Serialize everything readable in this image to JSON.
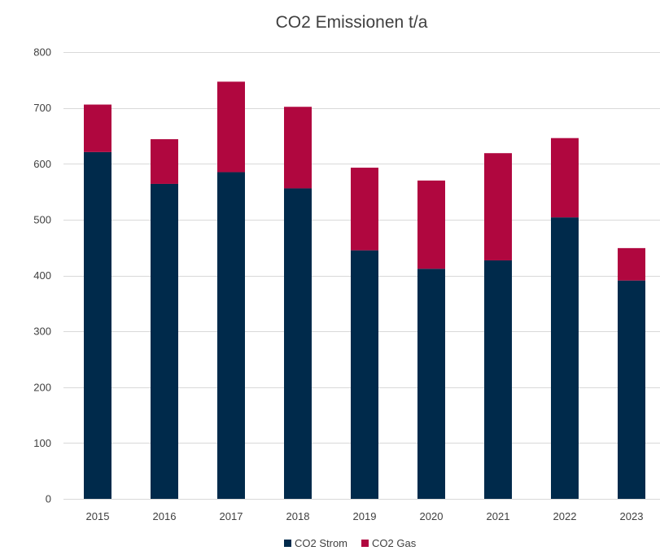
{
  "chart_data": {
    "type": "bar",
    "stacked": true,
    "title": "CO2 Emissionen t/a",
    "xlabel": "",
    "ylabel": "",
    "categories": [
      "2015",
      "2016",
      "2017",
      "2018",
      "2019",
      "2020",
      "2021",
      "2022",
      "2023"
    ],
    "series": [
      {
        "name": "CO2 Strom",
        "color": "#002a4b",
        "values": [
          621,
          564,
          585,
          556,
          445,
          412,
          427,
          504,
          391
        ]
      },
      {
        "name": "CO2 Gas",
        "color": "#b0073f",
        "values": [
          85,
          80,
          162,
          146,
          148,
          158,
          192,
          142,
          58
        ]
      }
    ],
    "ylim": [
      0,
      800
    ],
    "yticks": [
      0,
      100,
      200,
      300,
      400,
      500,
      600,
      700,
      800
    ],
    "grid": true,
    "legend_position": "bottom",
    "gridline_color": "#d9d9d9",
    "text_color": "#404040"
  }
}
